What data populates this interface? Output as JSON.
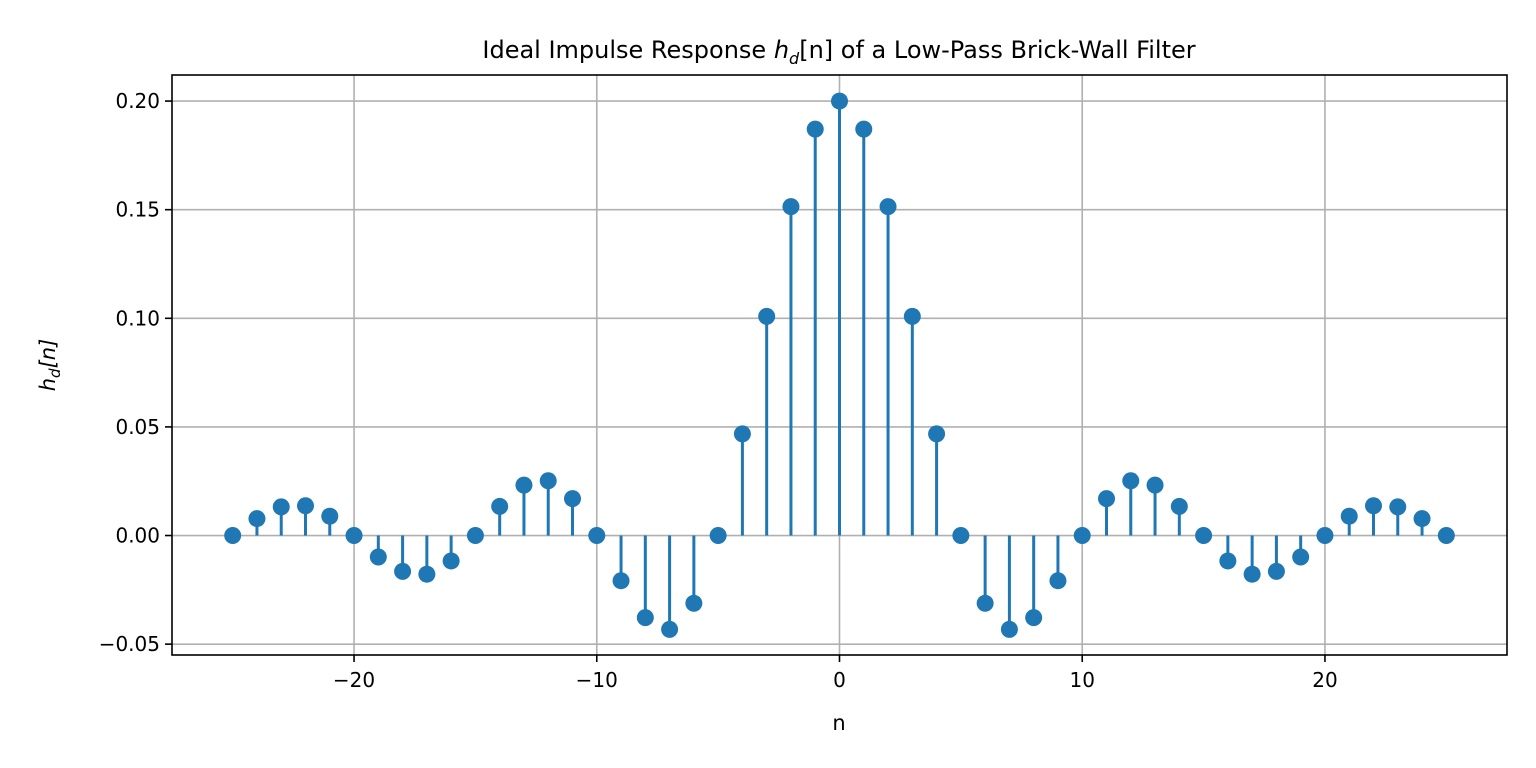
{
  "chart_data": {
    "type": "stem",
    "title": {
      "prefix": "Ideal Impulse Response ",
      "symbol": "h",
      "subscript": "d",
      "suffix_math": "[n]",
      "suffix": " of a Low-Pass Brick-Wall Filter"
    },
    "xlabel": "n",
    "ylabel": {
      "symbol": "h",
      "subscript": "d",
      "suffix": "[n]"
    },
    "xlim": [
      -27.5,
      27.5
    ],
    "ylim": [
      -0.055,
      0.212
    ],
    "x_ticks": [
      -20,
      -10,
      0,
      10,
      20
    ],
    "x_tick_labels": [
      "−20",
      "−10",
      "0",
      "10",
      "20"
    ],
    "y_ticks": [
      -0.05,
      0.0,
      0.05,
      0.1,
      0.15,
      0.2
    ],
    "y_tick_labels": [
      "−0.05",
      "0.00",
      "0.05",
      "0.10",
      "0.15",
      "0.20"
    ],
    "grid": true,
    "color": "#1f77b4",
    "x": [
      -25,
      -24,
      -23,
      -22,
      -21,
      -20,
      -19,
      -18,
      -17,
      -16,
      -15,
      -14,
      -13,
      -12,
      -11,
      -10,
      -9,
      -8,
      -7,
      -6,
      -5,
      -4,
      -3,
      -2,
      -1,
      0,
      1,
      2,
      3,
      4,
      5,
      6,
      7,
      8,
      9,
      10,
      11,
      12,
      13,
      14,
      15,
      16,
      17,
      18,
      19,
      20,
      21,
      22,
      23,
      24,
      25
    ],
    "values": [
      0.0,
      0.0078,
      0.0132,
      0.0137,
      0.0089,
      0.0,
      -0.0099,
      -0.0165,
      -0.0178,
      -0.0117,
      0.0,
      0.0134,
      0.0232,
      0.0252,
      0.017,
      0.0,
      -0.0208,
      -0.0378,
      -0.0432,
      -0.0312,
      0.0,
      0.0468,
      0.1009,
      0.1514,
      0.1871,
      0.2,
      0.1871,
      0.1514,
      0.1009,
      0.0468,
      0.0,
      -0.0312,
      -0.0432,
      -0.0378,
      -0.0208,
      0.0,
      0.017,
      0.0252,
      0.0232,
      0.0134,
      0.0,
      -0.0117,
      -0.0178,
      -0.0165,
      -0.0099,
      0.0,
      0.0089,
      0.0137,
      0.0132,
      0.0078,
      0.0
    ]
  }
}
